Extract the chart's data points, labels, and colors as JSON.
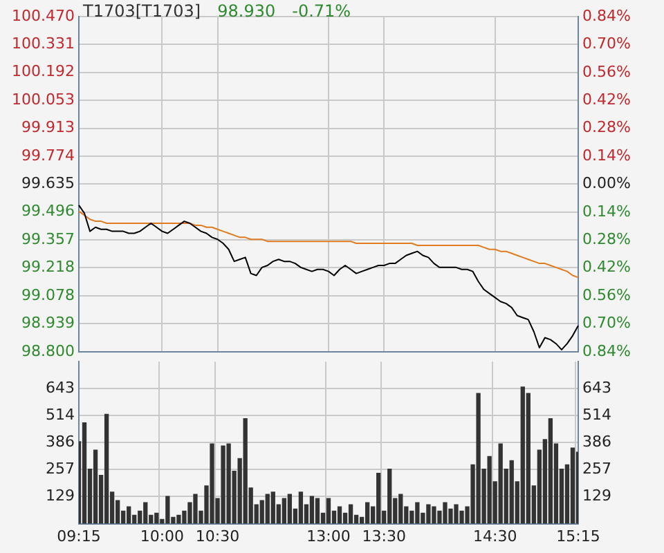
{
  "chart_data": [
    {
      "type": "line",
      "title": "T1703[T1703]",
      "annotations": [
        "98.930",
        "-0.71%"
      ],
      "categories": [
        null,
        null,
        null,
        null,
        null,
        null,
        null,
        null,
        null,
        null,
        null,
        null,
        null,
        null,
        null,
        null,
        null,
        null,
        null,
        null,
        null,
        null,
        null,
        null,
        null,
        null,
        null,
        null,
        null,
        null,
        null,
        null,
        null,
        null,
        null,
        null,
        null,
        null,
        null,
        null,
        null,
        null,
        null,
        null,
        null,
        null,
        null,
        null,
        null,
        null,
        null,
        null,
        null,
        null,
        null,
        null,
        null,
        null,
        null,
        null,
        null,
        null,
        null,
        null,
        null,
        null,
        null,
        null,
        null,
        null,
        null,
        null,
        null,
        null,
        null,
        null,
        null,
        null,
        null,
        null,
        null,
        null,
        null,
        null,
        null,
        null,
        null,
        null,
        null,
        null,
        null
      ],
      "series": [
        {
          "color": "#000000",
          "values": [
            99.53,
            99.49,
            99.4,
            99.42,
            99.41,
            99.41,
            99.4,
            99.4,
            99.4,
            99.39,
            99.39,
            99.4,
            99.42,
            99.44,
            99.42,
            99.4,
            99.39,
            99.41,
            99.43,
            99.45,
            99.44,
            99.42,
            99.4,
            99.39,
            99.37,
            99.36,
            99.34,
            99.31,
            99.25,
            99.26,
            99.27,
            99.19,
            99.18,
            99.22,
            99.23,
            99.25,
            99.26,
            99.25,
            99.25,
            99.24,
            99.22,
            99.21,
            99.2,
            99.21,
            99.21,
            99.2,
            99.18,
            99.21,
            99.23,
            99.21,
            99.19,
            99.2,
            99.21,
            99.22,
            99.23,
            99.23,
            99.24,
            99.24,
            99.26,
            99.28,
            99.29,
            99.3,
            99.28,
            99.27,
            99.24,
            99.22,
            99.22,
            99.22,
            99.22,
            99.21,
            99.21,
            99.2,
            99.15,
            99.11,
            99.09,
            99.07,
            99.05,
            99.04,
            99.02,
            98.98,
            98.97,
            98.96,
            98.9,
            98.82,
            98.87,
            98.86,
            98.84,
            98.81,
            98.84,
            98.88,
            98.93
          ]
        },
        {
          "color": "#e07b20",
          "values": [
            99.5,
            99.48,
            99.46,
            99.45,
            99.45,
            99.44,
            99.44,
            99.44,
            99.44,
            99.44,
            99.44,
            99.44,
            99.44,
            99.44,
            99.44,
            99.44,
            99.44,
            99.44,
            99.44,
            99.44,
            99.44,
            99.43,
            99.43,
            99.42,
            99.42,
            99.41,
            99.4,
            99.39,
            99.38,
            99.37,
            99.37,
            99.36,
            99.36,
            99.36,
            99.35,
            99.35,
            99.35,
            99.35,
            99.35,
            99.35,
            99.35,
            99.35,
            99.35,
            99.35,
            99.35,
            99.35,
            99.35,
            99.35,
            99.35,
            99.35,
            99.34,
            99.34,
            99.34,
            99.34,
            99.34,
            99.34,
            99.34,
            99.34,
            99.34,
            99.34,
            99.34,
            99.33,
            99.33,
            99.33,
            99.33,
            99.33,
            99.33,
            99.33,
            99.33,
            99.33,
            99.33,
            99.33,
            99.33,
            99.32,
            99.31,
            99.31,
            99.3,
            99.3,
            99.29,
            99.28,
            99.27,
            99.26,
            99.25,
            99.24,
            99.24,
            99.23,
            99.22,
            99.21,
            99.2,
            99.18,
            99.17
          ]
        }
      ],
      "marker": "none",
      "legend": false,
      "grid": true,
      "tick_labels": "y",
      "ylim": [
        98.8,
        100.47
      ],
      "yticks": [
        {
          "value": 98.8,
          "label": "98.800"
        },
        98.939,
        99.078,
        99.218,
        99.357,
        99.496,
        99.635,
        99.774,
        99.913,
        100.053,
        100.192,
        100.331,
        {
          "value": 100.47,
          "label": "100.470"
        }
      ],
      "y2lim": [
        -0.84,
        0.84
      ],
      "y2ticks": [
        {
          "value": -0.84,
          "label": "0.84%"
        },
        {
          "value": -0.7,
          "label": "0.70%"
        },
        {
          "value": -0.56,
          "label": "0.56%"
        },
        {
          "value": -0.42,
          "label": "0.42%"
        },
        {
          "value": -0.28,
          "label": "0.28%"
        },
        {
          "value": -0.14,
          "label": "0.14%"
        },
        {
          "value": 0,
          "label": "0.00%"
        },
        {
          "value": 0.14,
          "label": "0.14%"
        },
        {
          "value": 0.28,
          "label": "0.28%"
        },
        {
          "value": 0.42,
          "label": "0.42%"
        },
        {
          "value": 0.56,
          "label": "0.56%"
        },
        {
          "value": 0.7,
          "label": "0.70%"
        },
        {
          "value": 0.84,
          "label": "0.84%"
        }
      ]
    },
    {
      "type": "bar",
      "color": "#333333",
      "legend": false,
      "grid": true,
      "categories": [
        "09:15",
        null,
        null,
        null,
        null,
        null,
        null,
        null,
        null,
        null,
        null,
        null,
        null,
        null,
        null,
        "10:00",
        null,
        null,
        null,
        null,
        null,
        null,
        null,
        null,
        null,
        "10:30",
        null,
        null,
        null,
        null,
        null,
        null,
        null,
        null,
        null,
        null,
        null,
        null,
        null,
        null,
        null,
        null,
        null,
        null,
        null,
        "13:00",
        null,
        null,
        null,
        null,
        null,
        null,
        null,
        null,
        null,
        "13:30",
        null,
        null,
        null,
        null,
        null,
        null,
        null,
        null,
        null,
        null,
        null,
        null,
        null,
        null,
        null,
        null,
        null,
        null,
        null,
        "14:30",
        null,
        null,
        null,
        null,
        null,
        null,
        null,
        null,
        null,
        null,
        null,
        null,
        null,
        null,
        "15:15"
      ],
      "values": [
        390,
        480,
        260,
        350,
        230,
        520,
        150,
        110,
        60,
        80,
        40,
        60,
        100,
        40,
        50,
        20,
        130,
        30,
        40,
        60,
        100,
        140,
        60,
        180,
        380,
        120,
        370,
        380,
        250,
        310,
        500,
        170,
        90,
        110,
        140,
        150,
        90,
        120,
        140,
        70,
        150,
        90,
        130,
        120,
        50,
        120,
        60,
        80,
        50,
        90,
        40,
        30,
        100,
        80,
        240,
        60,
        260,
        120,
        140,
        80,
        60,
        100,
        50,
        90,
        80,
        60,
        100,
        70,
        90,
        60,
        80,
        280,
        620,
        260,
        320,
        200,
        380,
        260,
        300,
        200,
        650,
        620,
        180,
        350,
        400,
        500,
        380,
        260,
        280,
        360,
        340
      ],
      "ylim": [
        0,
        771
      ],
      "yticks": [
        129,
        257,
        386,
        514,
        643
      ],
      "y2lim": [
        0,
        771
      ],
      "y2ticks": [
        129,
        257,
        386,
        514,
        643
      ]
    }
  ]
}
